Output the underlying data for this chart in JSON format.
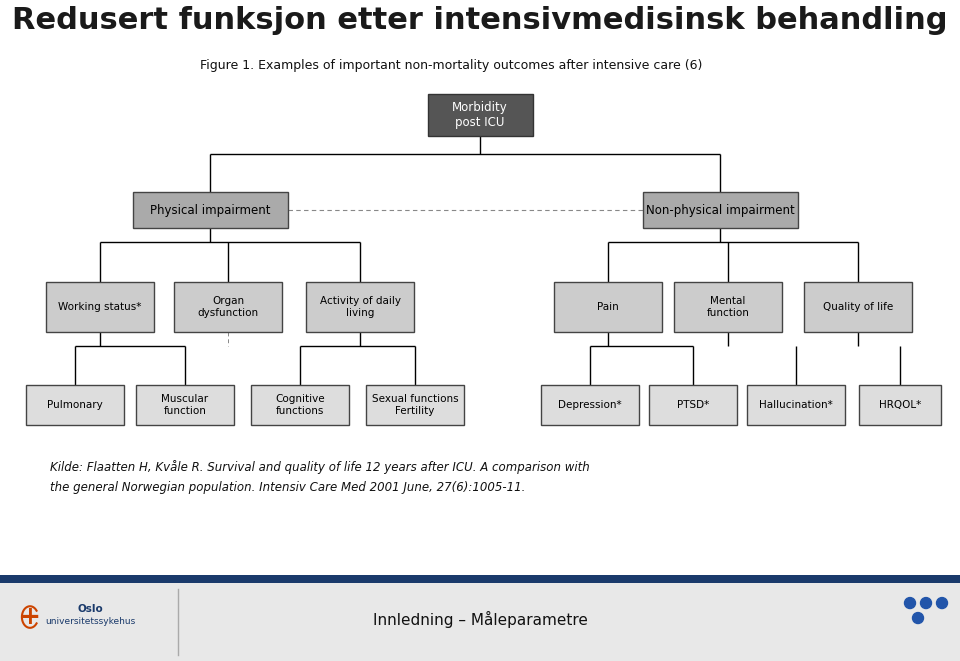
{
  "title": "Redusert funksjon etter intensivmedisinsk behandling",
  "figure_caption": "Figure 1. Examples of important non-mortality outcomes after intensive care (6)",
  "citation_line1": "Kilde: Flaatten H, Kvåle R. Survival and quality of life 12 years after ICU. A comparison with",
  "citation_line2": "the general Norwegian population. Intensiv Care Med 2001 June, 27(6):1005-11.",
  "footer_text": "Innledning – Måleparametre",
  "bg_color": "#ffffff",
  "title_color": "#1a1a1a",
  "header_bar_color": "#1a3a6b",
  "node_root_bg": "#555555",
  "node_root_fg": "#ffffff",
  "node_level1_bg": "#aaaaaa",
  "node_level1_fg": "#000000",
  "node_level2_bg": "#cccccc",
  "node_level2_fg": "#000000",
  "node_level3_bg": "#dddddd",
  "node_level3_fg": "#000000",
  "line_color": "#000000",
  "dashed_line_color": "#888888"
}
